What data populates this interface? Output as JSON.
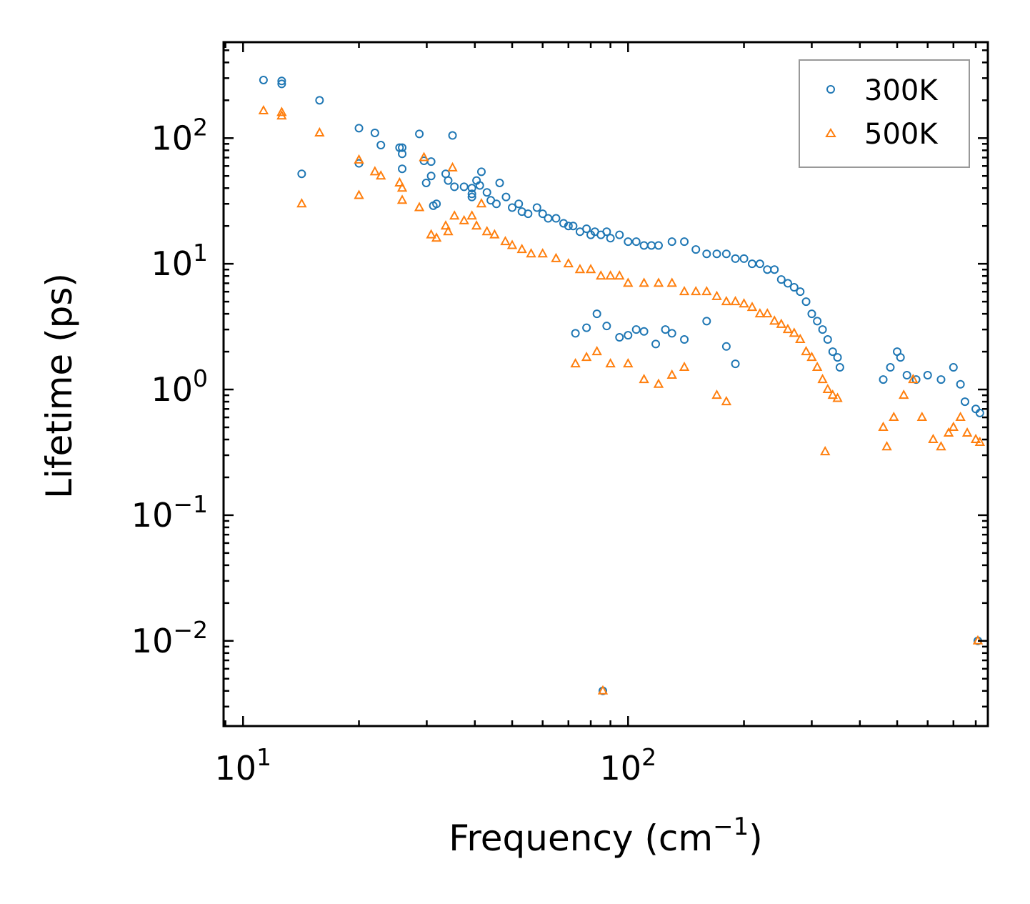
{
  "chart_data": {
    "type": "scatter",
    "title": "",
    "xlabel": "Frequency (cm",
    "xlabel_sup": "−1",
    "xlabel_end": ")",
    "ylabel": "Lifetime (ps)",
    "xscale": "log",
    "yscale": "log",
    "xlim": [
      8.9,
      860
    ],
    "ylim": [
      0.0021,
      580
    ],
    "x_ticks": [
      {
        "value": 10,
        "base": "10",
        "exp": "1"
      },
      {
        "value": 100,
        "base": "10",
        "exp": "2"
      }
    ],
    "y_ticks": [
      {
        "value": 100,
        "base": "10",
        "exp": "2"
      },
      {
        "value": 10,
        "base": "10",
        "exp": "1"
      },
      {
        "value": 1,
        "base": "10",
        "exp": "0"
      },
      {
        "value": 0.1,
        "base": "10",
        "exp": "−1"
      },
      {
        "value": 0.01,
        "base": "10",
        "exp": "−2"
      }
    ],
    "legend_position": "top-right",
    "series": [
      {
        "name": "300K",
        "color": "#1f77b4",
        "marker": "circle",
        "points": [
          [
            11.3,
            290
          ],
          [
            12.6,
            285
          ],
          [
            12.6,
            270
          ],
          [
            14.2,
            52
          ],
          [
            15.8,
            200
          ],
          [
            20.0,
            120
          ],
          [
            20.0,
            63
          ],
          [
            22.0,
            110
          ],
          [
            22.8,
            88
          ],
          [
            25.5,
            84
          ],
          [
            25.9,
            84
          ],
          [
            25.9,
            75
          ],
          [
            25.9,
            57
          ],
          [
            28.7,
            108
          ],
          [
            29.5,
            66
          ],
          [
            30.8,
            65
          ],
          [
            30.8,
            50
          ],
          [
            29.9,
            44
          ],
          [
            31.2,
            29
          ],
          [
            31.8,
            30
          ],
          [
            33.6,
            52
          ],
          [
            34.1,
            46
          ],
          [
            35.0,
            105
          ],
          [
            35.4,
            41
          ],
          [
            37.5,
            41
          ],
          [
            39.3,
            40
          ],
          [
            39.3,
            36
          ],
          [
            39.3,
            34
          ],
          [
            41.6,
            54
          ],
          [
            40.4,
            46
          ],
          [
            41.2,
            42
          ],
          [
            43.0,
            37
          ],
          [
            44.0,
            32
          ],
          [
            45.5,
            30
          ],
          [
            46.4,
            44
          ],
          [
            48.2,
            34
          ],
          [
            50.0,
            28
          ],
          [
            52.0,
            30
          ],
          [
            53.0,
            26
          ],
          [
            55.0,
            25
          ],
          [
            58.0,
            28
          ],
          [
            60.0,
            25
          ],
          [
            62.0,
            23
          ],
          [
            65.0,
            23
          ],
          [
            68.0,
            21
          ],
          [
            70.0,
            20
          ],
          [
            72.0,
            20
          ],
          [
            75.0,
            18
          ],
          [
            78.0,
            19
          ],
          [
            80.0,
            17
          ],
          [
            82.0,
            18
          ],
          [
            85.0,
            17
          ],
          [
            88.0,
            18
          ],
          [
            90.0,
            16
          ],
          [
            95.0,
            17
          ],
          [
            100.0,
            15
          ],
          [
            105.0,
            15
          ],
          [
            110.0,
            14
          ],
          [
            115.0,
            14
          ],
          [
            120.0,
            14
          ],
          [
            130.0,
            15
          ],
          [
            140.0,
            15
          ],
          [
            150.0,
            13
          ],
          [
            160.0,
            12
          ],
          [
            170.0,
            12
          ],
          [
            180.0,
            12
          ],
          [
            190.0,
            11
          ],
          [
            200.0,
            11
          ],
          [
            210.0,
            10
          ],
          [
            220.0,
            10
          ],
          [
            230.0,
            9
          ],
          [
            240.0,
            9
          ],
          [
            250.0,
            7.5
          ],
          [
            260.0,
            7
          ],
          [
            270.0,
            6.5
          ],
          [
            280.0,
            6
          ],
          [
            290.0,
            5
          ],
          [
            300.0,
            4
          ],
          [
            310.0,
            3.5
          ],
          [
            320.0,
            3
          ],
          [
            330.0,
            2.5
          ],
          [
            340.0,
            2
          ],
          [
            350.0,
            1.8
          ],
          [
            355.0,
            1.5
          ],
          [
            73.0,
            2.8
          ],
          [
            78.0,
            3.1
          ],
          [
            83.0,
            4.0
          ],
          [
            88.0,
            3.2
          ],
          [
            95.0,
            2.6
          ],
          [
            100.0,
            2.7
          ],
          [
            105.0,
            3.0
          ],
          [
            110.0,
            2.9
          ],
          [
            118.0,
            2.3
          ],
          [
            125.0,
            3.0
          ],
          [
            130.0,
            2.8
          ],
          [
            140.0,
            2.5
          ],
          [
            160.0,
            3.5
          ],
          [
            180.0,
            2.2
          ],
          [
            190.0,
            1.6
          ],
          [
            86.0,
            0.004
          ],
          [
            460,
            1.2
          ],
          [
            480,
            1.5
          ],
          [
            500,
            2.0
          ],
          [
            510,
            1.8
          ],
          [
            530,
            1.3
          ],
          [
            560,
            1.2
          ],
          [
            600,
            1.3
          ],
          [
            650,
            1.2
          ],
          [
            700,
            1.5
          ],
          [
            730,
            1.1
          ],
          [
            750,
            0.8
          ],
          [
            800,
            0.7
          ],
          [
            820,
            0.65
          ],
          [
            810,
            0.01
          ]
        ]
      },
      {
        "name": "500K",
        "color": "#ff7f0e",
        "marker": "triangle",
        "points": [
          [
            11.3,
            165
          ],
          [
            12.6,
            160
          ],
          [
            12.6,
            150
          ],
          [
            14.2,
            30
          ],
          [
            15.8,
            110
          ],
          [
            20.0,
            67
          ],
          [
            20.0,
            35
          ],
          [
            22.0,
            54
          ],
          [
            22.8,
            50
          ],
          [
            25.5,
            44
          ],
          [
            25.9,
            40
          ],
          [
            25.9,
            32
          ],
          [
            28.7,
            28
          ],
          [
            29.5,
            70
          ],
          [
            30.8,
            17
          ],
          [
            31.8,
            16
          ],
          [
            33.6,
            20
          ],
          [
            34.1,
            18
          ],
          [
            35.0,
            58
          ],
          [
            35.4,
            24
          ],
          [
            37.5,
            22
          ],
          [
            39.3,
            24
          ],
          [
            40.4,
            20
          ],
          [
            41.6,
            30
          ],
          [
            43.0,
            18
          ],
          [
            45.0,
            17
          ],
          [
            48.0,
            15
          ],
          [
            50.0,
            14
          ],
          [
            53.0,
            13
          ],
          [
            56.0,
            12
          ],
          [
            60.0,
            12
          ],
          [
            65.0,
            11
          ],
          [
            70.0,
            10
          ],
          [
            75.0,
            9
          ],
          [
            80.0,
            9
          ],
          [
            85.0,
            8
          ],
          [
            90.0,
            8
          ],
          [
            95.0,
            8
          ],
          [
            100.0,
            7
          ],
          [
            110.0,
            7
          ],
          [
            120.0,
            7
          ],
          [
            130.0,
            7
          ],
          [
            140.0,
            6
          ],
          [
            150.0,
            6
          ],
          [
            160.0,
            6
          ],
          [
            170.0,
            5.5
          ],
          [
            180.0,
            5
          ],
          [
            190.0,
            5
          ],
          [
            200.0,
            4.8
          ],
          [
            210.0,
            4.5
          ],
          [
            220.0,
            4
          ],
          [
            230.0,
            4
          ],
          [
            240.0,
            3.5
          ],
          [
            250.0,
            3.3
          ],
          [
            260.0,
            3
          ],
          [
            270.0,
            2.8
          ],
          [
            280.0,
            2.5
          ],
          [
            290.0,
            2
          ],
          [
            300.0,
            1.8
          ],
          [
            310.0,
            1.5
          ],
          [
            320.0,
            1.2
          ],
          [
            330.0,
            1.0
          ],
          [
            340.0,
            0.9
          ],
          [
            350.0,
            0.85
          ],
          [
            325.0,
            0.32
          ],
          [
            73.0,
            1.6
          ],
          [
            78.0,
            1.8
          ],
          [
            83.0,
            2.0
          ],
          [
            90.0,
            1.6
          ],
          [
            100.0,
            1.6
          ],
          [
            110.0,
            1.2
          ],
          [
            120.0,
            1.1
          ],
          [
            130.0,
            1.3
          ],
          [
            140.0,
            1.5
          ],
          [
            170.0,
            0.9
          ],
          [
            180.0,
            0.8
          ],
          [
            86.0,
            0.004
          ],
          [
            460,
            0.5
          ],
          [
            470,
            0.35
          ],
          [
            490,
            0.6
          ],
          [
            520,
            0.9
          ],
          [
            550,
            1.2
          ],
          [
            580,
            0.6
          ],
          [
            620,
            0.4
          ],
          [
            650,
            0.35
          ],
          [
            680,
            0.45
          ],
          [
            700,
            0.5
          ],
          [
            730,
            0.6
          ],
          [
            760,
            0.45
          ],
          [
            800,
            0.4
          ],
          [
            820,
            0.38
          ],
          [
            810,
            0.01
          ]
        ]
      }
    ]
  }
}
